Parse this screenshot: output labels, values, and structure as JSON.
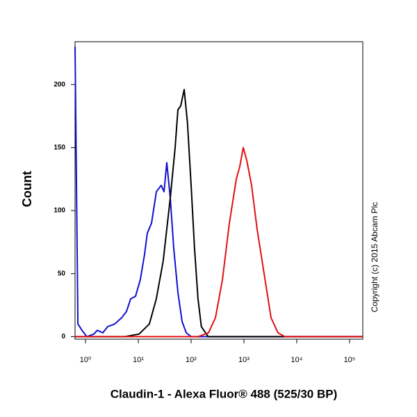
{
  "chart_data": {
    "type": "line",
    "x_label": "Claudin-1 - Alexa Fluor® 488 (525/30 BP)",
    "y_label": "Count",
    "annotation": "Copyright (c) 2015 Abcam Plc",
    "xscale": "log",
    "xlim": [
      0.635,
      178000
    ],
    "xticks": [
      {
        "value": 1,
        "label": "10⁰"
      },
      {
        "value": 10,
        "label": "10¹"
      },
      {
        "value": 100,
        "label": "10²"
      },
      {
        "value": 1000,
        "label": "10³"
      },
      {
        "value": 10000,
        "label": "10⁴"
      },
      {
        "value": 100000,
        "label": "10⁵"
      }
    ],
    "ylim": [
      -2,
      234
    ],
    "yticks": [
      0,
      50,
      100,
      150,
      200
    ],
    "series": [
      {
        "color": "#1010d0",
        "x": [
          0.635,
          0.72,
          0.86,
          1.06,
          1.44,
          1.67,
          2.13,
          2.64,
          3.57,
          4.83,
          5.97,
          7.17,
          8.86,
          10.9,
          13.1,
          14.8,
          17.8,
          22.0,
          27.2,
          30.7,
          34.6,
          40.3,
          46.9,
          56.2,
          67.4,
          80.9,
          100,
          178000
        ],
        "values": [
          230,
          10,
          5,
          0,
          2,
          5,
          3,
          8,
          10,
          15,
          20,
          30,
          32,
          45,
          65,
          82,
          90,
          115,
          120,
          115,
          138,
          110,
          70,
          35,
          12,
          3,
          0,
          0
        ]
      },
      {
        "color": "#000000",
        "x": [
          0.635,
          5.6,
          10.3,
          16.2,
          21.9,
          29.6,
          40.3,
          49.8,
          56.3,
          63.6,
          73.8,
          85.2,
          100,
          116,
          135,
          156,
          211,
          178000
        ],
        "values": [
          0,
          0,
          2,
          10,
          30,
          60,
          110,
          150,
          180,
          183,
          196,
          170,
          120,
          70,
          30,
          8,
          0,
          0
        ]
      },
      {
        "color": "#e01010",
        "x": [
          0.635,
          135,
          213,
          289,
          391,
          529,
          716,
          834,
          970,
          1129,
          1396,
          1778,
          2410,
          3260,
          4415,
          5970,
          178000
        ],
        "values": [
          0,
          0,
          3,
          15,
          45,
          90,
          125,
          135,
          150,
          140,
          120,
          85,
          50,
          15,
          3,
          0,
          0
        ]
      }
    ]
  }
}
